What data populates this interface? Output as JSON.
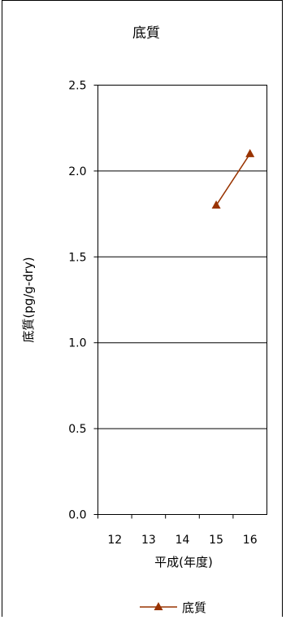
{
  "chart_data": {
    "type": "line",
    "title": "底質",
    "xlabel": "平成(年度)",
    "ylabel": "底質(pg/g-dry)",
    "categories": [
      "12",
      "13",
      "14",
      "15",
      "16"
    ],
    "y_ticks": [
      "0.0",
      "0.5",
      "1.0",
      "1.5",
      "2.0",
      "2.5"
    ],
    "ylim": [
      0,
      2.5
    ],
    "grid": true,
    "legend_position": "bottom",
    "series": [
      {
        "name": "底質",
        "color": "#993300",
        "marker": "triangle",
        "values": [
          null,
          null,
          null,
          1.8,
          2.1
        ]
      }
    ]
  }
}
